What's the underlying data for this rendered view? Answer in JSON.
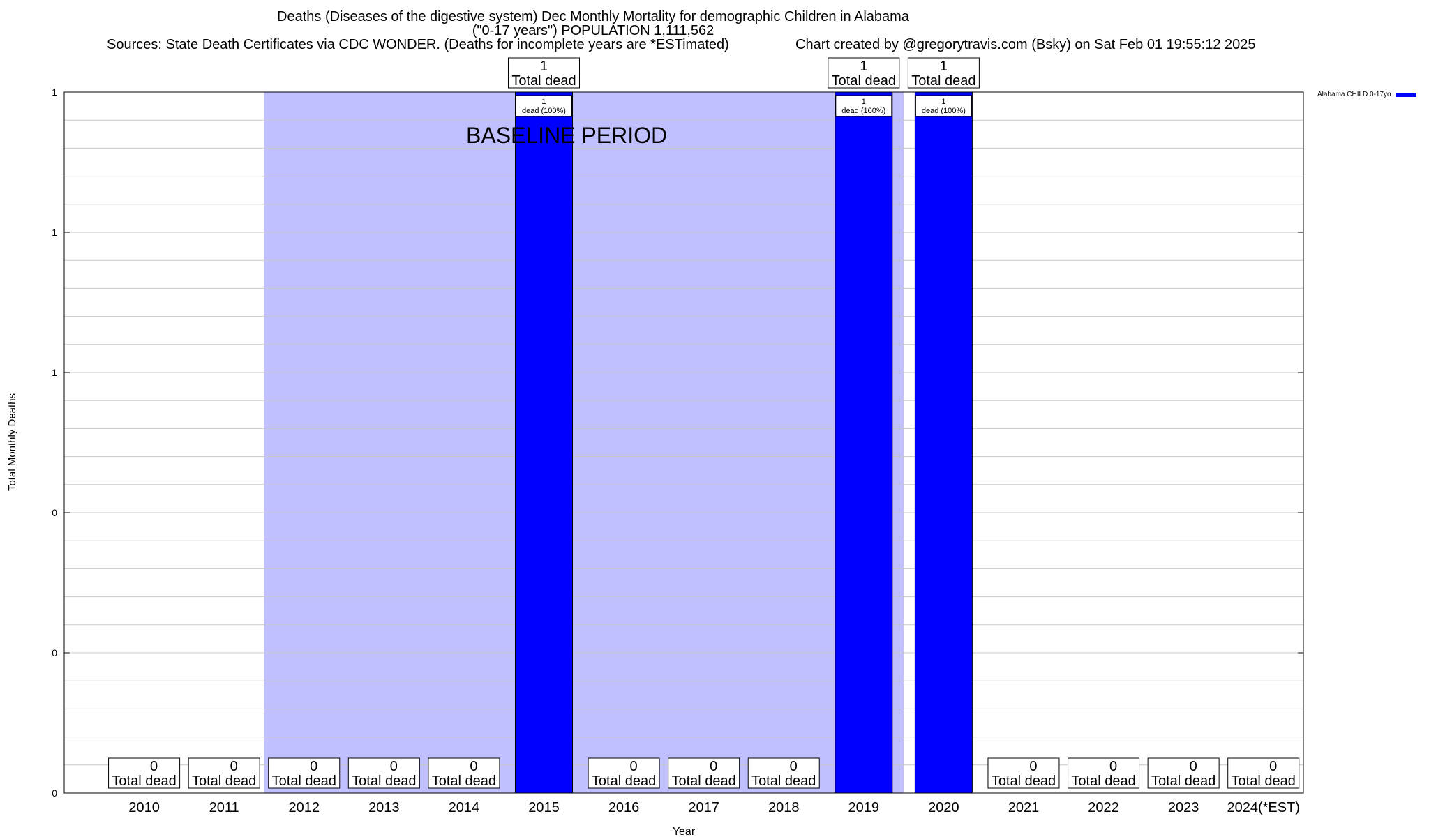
{
  "chart_data": {
    "type": "bar",
    "title": "Deaths (Diseases of the digestive system) Dec Monthly Mortality for demographic Children in Alabama",
    "subtitle": "(\"0-17 years\") POPULATION 1,111,562",
    "source": "Sources: State Death Certificates via CDC WONDER. (Deaths for incomplete years are *ESTimated)",
    "credit": "Chart created by @gregorytravis.com (Bsky) on Sat Feb 01 19:55:12 2025",
    "xlabel": "Year",
    "ylabel": "Total Monthly Deaths",
    "ylim": [
      0,
      1
    ],
    "y_tick_labels": [
      "0",
      "0",
      "0",
      "1",
      "1",
      "1"
    ],
    "grid": true,
    "legend_position": "top-right",
    "categories": [
      "2010",
      "2011",
      "2012",
      "2013",
      "2014",
      "2015",
      "2016",
      "2017",
      "2018",
      "2019",
      "2020",
      "2021",
      "2022",
      "2023",
      "2024(*EST)"
    ],
    "series": [
      {
        "name": "Alabama CHILD 0-17yo",
        "color": "#0000ff",
        "values": [
          0,
          0,
          0,
          0,
          0,
          1,
          0,
          0,
          0,
          1,
          1,
          0,
          0,
          0,
          0
        ]
      }
    ],
    "total_label_suffix": "Total dead",
    "bar_label_line1": [
      "",
      "",
      "",
      "",
      "",
      "1",
      "",
      "",
      "",
      "1",
      "",
      "",
      "",
      "",
      ""
    ],
    "bar_label_line2": [
      "",
      "",
      "",
      "",
      "",
      "dead (100%)",
      "",
      "",
      "",
      "dead (100%)",
      "",
      "",
      "",
      "",
      ""
    ],
    "bar_label_line1_2020": "1",
    "bar_label_line2_2020": "dead (100%)",
    "baseline": {
      "label": "BASELINE PERIOD",
      "from_category_index": 2,
      "to_category_index": 10,
      "color": "#c0c0ff"
    }
  }
}
